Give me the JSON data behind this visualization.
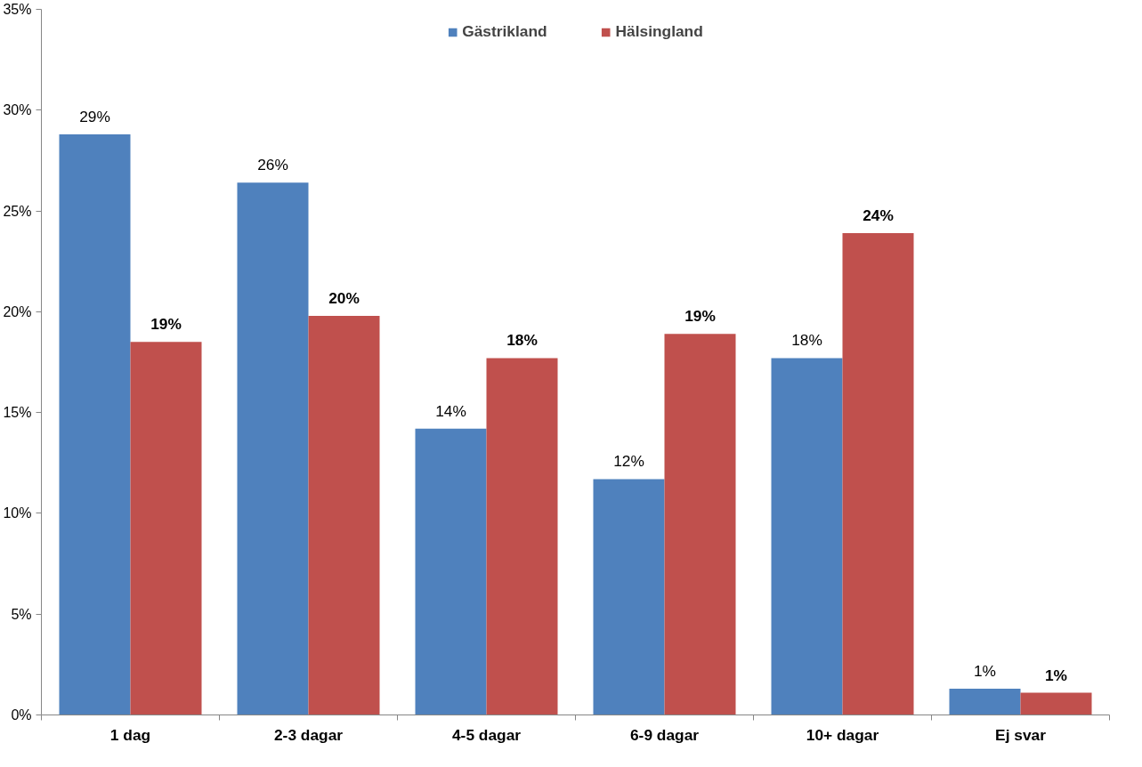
{
  "chart_data": {
    "type": "bar",
    "categories": [
      "1 dag",
      "2-3 dagar",
      "4-5 dagar",
      "6-9 dagar",
      "10+ dagar",
      "Ej svar"
    ],
    "series": [
      {
        "name": "Gästrikland",
        "color": "#4f81bd",
        "values": [
          28.8,
          26.4,
          14.2,
          11.7,
          17.7,
          1.3
        ],
        "value_labels": [
          "29%",
          "26%",
          "14%",
          "12%",
          "18%",
          "1%"
        ]
      },
      {
        "name": "Hälsingland",
        "color": "#c0504d",
        "values": [
          18.5,
          19.8,
          17.7,
          18.9,
          23.9,
          1.1
        ],
        "value_labels": [
          "19%",
          "20%",
          "18%",
          "19%",
          "24%",
          "1%"
        ]
      }
    ],
    "ylim": [
      0,
      35
    ],
    "yticks": [
      {
        "value": 0,
        "label": "0%"
      },
      {
        "value": 5,
        "label": "5%"
      },
      {
        "value": 10,
        "label": "10%"
      },
      {
        "value": 15,
        "label": "15%"
      },
      {
        "value": 20,
        "label": "20%"
      },
      {
        "value": 25,
        "label": "25%"
      },
      {
        "value": 30,
        "label": "30%"
      },
      {
        "value": 35,
        "label": "35%"
      }
    ],
    "grid": false,
    "legend": "top"
  }
}
